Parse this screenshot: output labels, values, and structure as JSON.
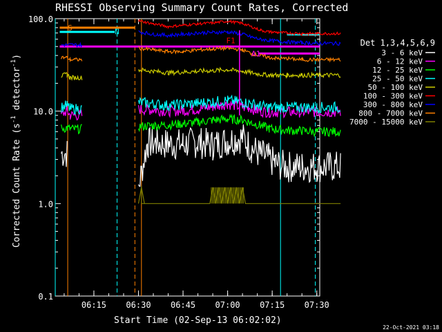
{
  "chart_data": {
    "type": "line",
    "title": "RHESSI Observing Summary Count Rates, Corrected",
    "xlabel": "Start Time (02-Sep-13 06:02:02)",
    "ylabel_main": "Corrected Count Rate (s",
    "ylabel_sup": "-1",
    "ylabel_mid": " detector",
    "ylabel_end": ")",
    "footer": "22-Oct-2021 03:18",
    "y_scale": "log",
    "ylim": [
      0.1,
      100.0
    ],
    "xlim_min": [
      362,
      451
    ],
    "x_tick_labels": [
      "06:15",
      "06:30",
      "06:45",
      "07:00",
      "07:15",
      "07:30"
    ],
    "x_tick_min": [
      375,
      390,
      405,
      420,
      435,
      450
    ],
    "y_tick_labels": [
      "0.1",
      "1.0",
      "10.0",
      "100.0"
    ],
    "y_tick_values": [
      0.1,
      1.0,
      10.0,
      100.0
    ],
    "legend_title": "Det 1,3,4,5,6,9",
    "legend_placement": "right",
    "series": [
      {
        "name": "3 - 6 keV",
        "color": "#ffffff",
        "x": [
          364,
          366,
          366,
          371,
          371
        ],
        "y": [
          3.5,
          3.5,
          null,
          null,
          null
        ],
        "x2": [
          390,
          393,
          396,
          400,
          405,
          410,
          415,
          420,
          425,
          428,
          431,
          433,
          436,
          440,
          445,
          450,
          458
        ],
        "y2": [
          1.5,
          4.5,
          4.5,
          4.4,
          4.4,
          4.6,
          4.3,
          4.8,
          5.2,
          4.0,
          3.4,
          3.2,
          2.7,
          2.5,
          2.5,
          2.5,
          2.5
        ]
      },
      {
        "name": "6 - 12 keV",
        "color": "#ff00ff",
        "x": [
          364,
          366,
          367,
          371
        ],
        "y": [
          9.0,
          10.2,
          9.0,
          9.0
        ],
        "x2": [
          390,
          395,
          400,
          405,
          410,
          415,
          420,
          425,
          427,
          429,
          431,
          434,
          437,
          440,
          445,
          450,
          458
        ],
        "y2": [
          10.5,
          10.3,
          10.0,
          10.1,
          10.5,
          11.2,
          12.0,
          11.0,
          11.0,
          10.4,
          10.0,
          9.8,
          9.8,
          9.8,
          9.8,
          9.8,
          9.8
        ]
      },
      {
        "name": "12 - 25 keV",
        "color": "#00ff00",
        "x": [
          364,
          366,
          367,
          371
        ],
        "y": [
          6.5,
          6.6,
          6.4,
          6.4
        ],
        "x2": [
          390,
          395,
          400,
          405,
          410,
          415,
          420,
          425,
          428,
          431,
          434,
          437,
          440,
          445,
          450,
          458
        ],
        "y2": [
          6.8,
          7.0,
          7.1,
          7.3,
          7.6,
          8.0,
          8.2,
          8.0,
          7.5,
          7.0,
          6.5,
          6.3,
          6.2,
          6.1,
          6.0,
          6.0
        ]
      },
      {
        "name": "25 - 50 keV",
        "color": "#00ffff",
        "x": [
          364,
          366,
          367,
          371
        ],
        "y": [
          11.0,
          11.5,
          10.6,
          10.6
        ],
        "x2": [
          390,
          395,
          400,
          405,
          410,
          415,
          420,
          425,
          428,
          431,
          434,
          437,
          440,
          445,
          450,
          458
        ],
        "y2": [
          12.5,
          12.0,
          11.5,
          11.8,
          12.2,
          12.6,
          13.0,
          12.5,
          12.0,
          11.4,
          11.0,
          11.0,
          11.0,
          11.0,
          11.0,
          11.0
        ]
      },
      {
        "name": "50 - 100 keV",
        "color": "#cccc00",
        "x": [
          364,
          366,
          367,
          371
        ],
        "y": [
          24,
          25,
          23,
          23
        ],
        "x2": [
          390,
          395,
          400,
          405,
          410,
          415,
          420,
          425,
          428,
          431,
          434,
          437,
          440,
          445,
          450,
          458
        ],
        "y2": [
          28,
          27,
          26,
          26.5,
          27,
          27.5,
          28,
          27,
          26,
          25,
          24.5,
          24.5,
          24.5,
          24.5,
          24.5,
          24.5
        ]
      },
      {
        "name": "100 - 300 keV",
        "color": "#ff0000",
        "x": [],
        "y": [],
        "x2": [
          390,
          395,
          400,
          405,
          410,
          415,
          420,
          425,
          428,
          431,
          434,
          437,
          440,
          445,
          450,
          458
        ],
        "y2": [
          95,
          88,
          82,
          85,
          88,
          90,
          94,
          89,
          82,
          75,
          72,
          71,
          70,
          69,
          69,
          69
        ]
      },
      {
        "name": "300 - 800 keV",
        "color": "#0000ff",
        "x": [
          364,
          371
        ],
        "y": [
          52,
          52
        ],
        "x2": [
          390,
          395,
          400,
          405,
          410,
          415,
          420,
          425,
          428,
          431,
          434,
          437,
          440,
          445,
          450,
          458
        ],
        "y2": [
          72,
          68,
          66,
          68,
          70,
          71,
          72,
          68,
          63,
          60,
          58,
          57,
          56,
          55,
          54,
          54
        ]
      },
      {
        "name": "800 - 7000 keV",
        "color": "#ff8000",
        "x": [
          364,
          366,
          367,
          371
        ],
        "y": [
          38,
          38,
          36,
          36
        ],
        "x2": [
          390,
          395,
          400,
          405,
          410,
          415,
          420,
          425,
          428,
          431,
          434,
          437,
          440,
          445,
          450,
          458
        ],
        "y2": [
          48,
          46,
          44,
          44,
          46,
          47,
          48,
          46,
          42,
          40,
          38,
          37,
          37,
          36,
          36,
          36
        ]
      },
      {
        "name": "7000 - 15000 keV",
        "color": "#808000",
        "x": [],
        "y": [],
        "x2": [
          390,
          391,
          392,
          391,
          410,
          414,
          415,
          416,
          417,
          418,
          419,
          420,
          421,
          422,
          423,
          424,
          425,
          426,
          458
        ],
        "y2": [
          1.0,
          1.5,
          1.0,
          1.0,
          1.0,
          1.0,
          1.5,
          1.0,
          1.5,
          1.0,
          1.5,
          1.0,
          1.5,
          1.0,
          1.5,
          1.0,
          1.5,
          1.0,
          1.0
        ]
      }
    ],
    "spike": {
      "x_min": 424,
      "y": [
        9.0,
        75.0
      ],
      "color": "#ff00ff"
    },
    "annotations": [
      {
        "label": "S",
        "x_min": 366.2,
        "y": 80,
        "color": "#ff8000"
      },
      {
        "label": "N",
        "x_min": 382,
        "y": 73,
        "color": "#00ffff"
      },
      {
        "label": "F1",
        "x_min": 419.5,
        "y": 58,
        "color": "#ff0000"
      },
      {
        "label": "A1",
        "x_min": 428,
        "y": 42,
        "color": "#ff00ff"
      }
    ],
    "bars": [
      {
        "color": "#ff8000",
        "x_min": [
          363.5,
          388.8
        ],
        "y": 80,
        "width": 3
      },
      {
        "color": "#00ffff",
        "x_min": [
          363.5,
          382
        ],
        "y": 72,
        "width": 3
      },
      {
        "color": "#ff00ff",
        "x_min": [
          363.5,
          451
        ],
        "y": 50,
        "width": 3
      },
      {
        "color": "#ff00ff",
        "x_min": [
          430.5,
          451
        ],
        "y": 42,
        "width": 3
      },
      {
        "color": "#ff0000",
        "x_min": [
          445,
          451
        ],
        "y": 67,
        "width": 3
      },
      {
        "color": "#00ffff",
        "x_min": [
          440,
          451
        ],
        "y": 67,
        "width": 2
      }
    ],
    "vlines": [
      {
        "x_min": 362,
        "color": "#00ffff",
        "dash": false
      },
      {
        "x_min": 366.2,
        "color": "#ff8000",
        "dash": false
      },
      {
        "x_min": 382.8,
        "color": "#00ffff",
        "dash": true
      },
      {
        "x_min": 388.8,
        "color": "#ff8000",
        "dash": true
      },
      {
        "x_min": 391.0,
        "color": "#ff8000",
        "dash": false
      },
      {
        "x_min": 437.8,
        "color": "#00ffff",
        "dash": false
      },
      {
        "x_min": 449.5,
        "color": "#00ffff",
        "dash": true
      }
    ]
  }
}
